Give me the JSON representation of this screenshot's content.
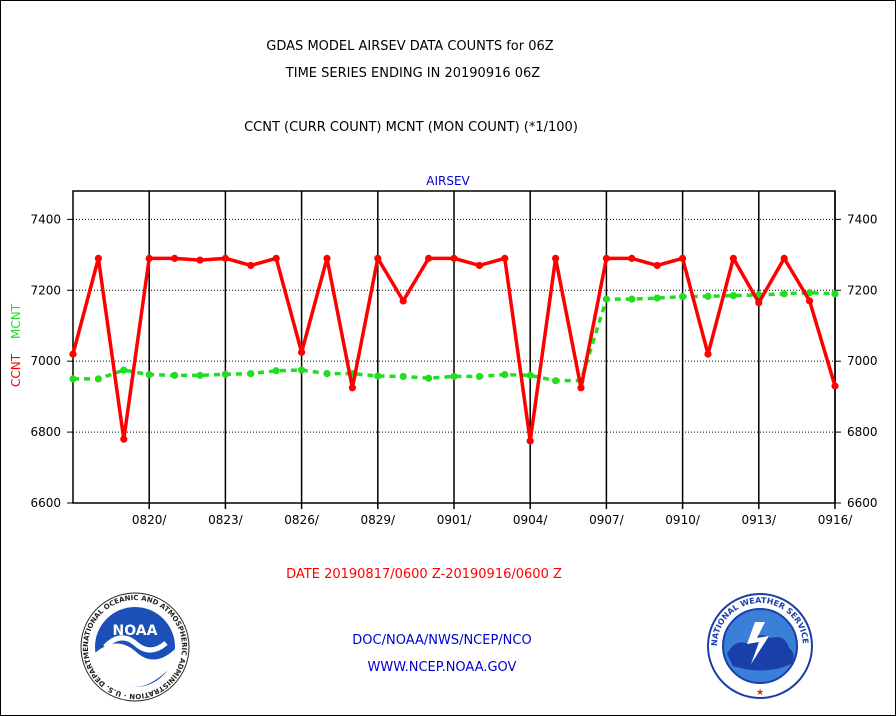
{
  "header": {
    "title_line1": "GDAS MODEL AIRSEV DATA COUNTS for 06Z",
    "title_line2": "TIME SERIES ENDING IN 20190916 06Z",
    "subtitle": "CCNT (CURR COUNT) MCNT (MON COUNT) (*1/100)"
  },
  "footer": {
    "date_range": "DATE 20190817/0600 Z-20190916/0600 Z",
    "org_line": "DOC/NOAA/NWS/NCEP/NCO",
    "url": "WWW.NCEP.NOAA.GOV",
    "noaa_logo_text": "NOAA",
    "noaa_ring_text": "NATIONAL OCEANIC AND ATMOSPHERIC ADMINISTRATION · U.S. DEPARTMENT OF COMMERCE ·",
    "nws_ring_text": "NATIONAL WEATHER SERVICE"
  },
  "colors": {
    "ccnt": "#ff0000",
    "mcnt": "#22dd22",
    "panel_label": "#0000cc",
    "footer_link": "#0000cc",
    "date_text": "#ff0000"
  },
  "chart_data": {
    "type": "line",
    "panel_label": "AIRSEV",
    "ylim": [
      6600,
      7480
    ],
    "y_ticks": [
      "6600",
      "6800",
      "7000",
      "7200",
      "7400"
    ],
    "ylabel_ccnt": "CCNT",
    "ylabel_mcnt": "MCNT",
    "x_tick_labels": [
      "0820/",
      "0823/",
      "0826/",
      "0829/",
      "0901/",
      "0904/",
      "0907/",
      "0910/",
      "0913/",
      "0916/"
    ],
    "grid": true,
    "series": [
      {
        "name": "CCNT",
        "style": "solid",
        "values": [
          7020,
          7290,
          6780,
          7290,
          7290,
          7285,
          7290,
          7270,
          7290,
          7025,
          7290,
          6925,
          7290,
          7170,
          7290,
          7290,
          7270,
          7290,
          6775,
          7290,
          6925,
          7290,
          7290,
          7270,
          7290,
          7020,
          7290,
          7165,
          7290,
          7170,
          6930
        ]
      },
      {
        "name": "MCNT",
        "style": "dashed",
        "values": [
          6950,
          6950,
          6975,
          6962,
          6960,
          6960,
          6963,
          6965,
          6973,
          6975,
          6965,
          6965,
          6958,
          6957,
          6952,
          6957,
          6957,
          6962,
          6960,
          6945,
          6945,
          7175,
          7175,
          7178,
          7182,
          7183,
          7185,
          7187,
          7190,
          7193,
          7190
        ]
      }
    ]
  }
}
